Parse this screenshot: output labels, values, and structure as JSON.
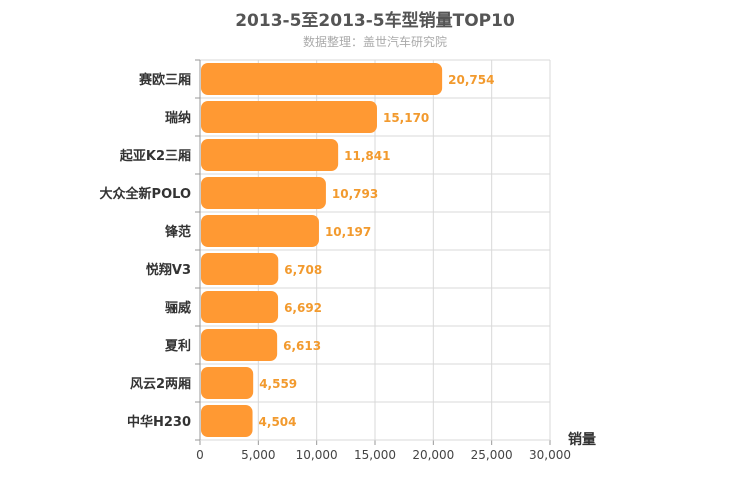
{
  "chart_data": {
    "type": "bar",
    "orientation": "horizontal",
    "title": "2013-5至2013-5车型销量TOP10",
    "subtitle": "数据整理：盖世汽车研究院",
    "xlabel": "销量",
    "ylabel": "",
    "xlim": [
      0,
      30000
    ],
    "x_ticks": [
      "0",
      "5,000",
      "10,000",
      "15,000",
      "20,000",
      "25,000",
      "30,000"
    ],
    "grid": true,
    "bar_color": "#ff9933",
    "label_color": "#f29a2e",
    "categories": [
      "赛欧三厢",
      "瑞纳",
      "起亚K2三厢",
      "大众全新POLO",
      "锋范",
      "悦翔V3",
      "骊威",
      "夏利",
      "风云2两厢",
      "中华H230"
    ],
    "values": [
      20754,
      15170,
      11841,
      10793,
      10197,
      6708,
      6692,
      6613,
      4559,
      4504
    ],
    "value_labels": [
      "20,754",
      "15,170",
      "11,841",
      "10,793",
      "10,197",
      "6,708",
      "6,692",
      "6,613",
      "4,559",
      "4,504"
    ]
  }
}
